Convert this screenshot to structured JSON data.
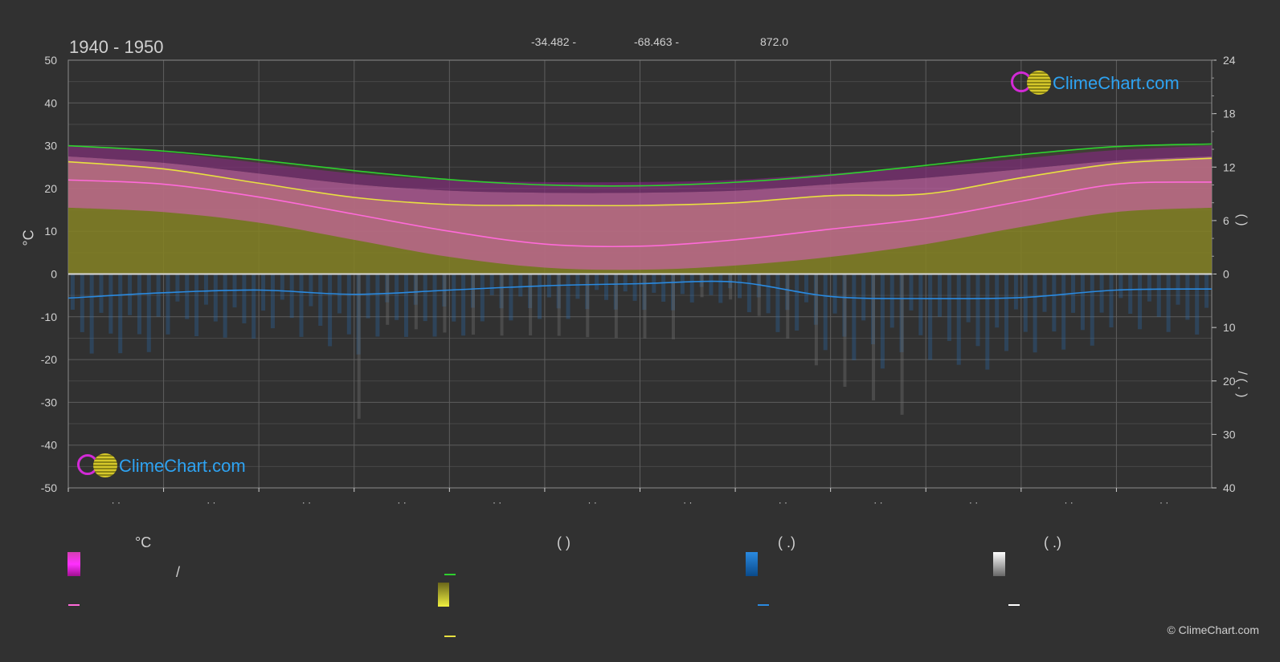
{
  "header": {
    "period": "1940 - 1950",
    "coords": [
      "-34.482 -",
      "-68.463 -",
      "872.0"
    ]
  },
  "axes": {
    "left_label": "°C",
    "left_ticks": [
      50,
      40,
      30,
      20,
      10,
      0,
      -10,
      -20,
      -30,
      -40,
      -50
    ],
    "right_top_ticks": [
      24,
      18,
      12,
      6,
      0
    ],
    "right_bottom_ticks": [
      10,
      20,
      30,
      40
    ],
    "right_top_title": "(     )",
    "right_bottom_title": "/ (  .  )",
    "month_ticks": [
      "· ·",
      "· ·",
      "· ·",
      "· ·",
      "· ·",
      "· ·",
      "· ·",
      "· ·",
      "· ·",
      "· ·",
      "· ·",
      "· ·"
    ]
  },
  "legend": {
    "col1_title": "°C",
    "col1_range_sep": "/",
    "col2_title": "(          )",
    "col3_title": "(   .)",
    "col4_title": "(   .)"
  },
  "logo_text": "ClimeChart.com",
  "copyright": "© ClimeChart.com",
  "colors": {
    "background": "#313131",
    "grid": "#5a5a5a",
    "daylight": "#2ed12e",
    "sunshine": "#e8e040",
    "temp_mean": "#ff6ad9",
    "temp_band": "#d43fb2",
    "rain": "#2a8ae0",
    "snow": "#8a8a8a"
  },
  "chart_data": {
    "type": "area",
    "x_unit": "month",
    "x_months": 12,
    "ylim_left": [
      -50,
      50
    ],
    "ylim_right_top": [
      0,
      24
    ],
    "ylim_right_bottom": [
      0,
      40
    ],
    "series": [
      {
        "key": "daylight_hours",
        "values": [
          14.4,
          13.8,
          12.8,
          11.6,
          10.6,
          10.0,
          9.9,
          10.3,
          11.1,
          12.2,
          13.4,
          14.3,
          14.6
        ]
      },
      {
        "key": "sunshine_hours",
        "values": [
          12.6,
          11.8,
          10.2,
          8.6,
          7.8,
          7.7,
          7.7,
          8.0,
          8.8,
          9.0,
          10.8,
          12.4,
          13.0
        ]
      },
      {
        "key": "temp_max_mean",
        "values": [
          27.5,
          26.0,
          23.5,
          21.0,
          19.5,
          19.0,
          19.0,
          19.5,
          21.0,
          22.5,
          24.5,
          26.5,
          27.5
        ]
      },
      {
        "key": "temp_mean",
        "values": [
          22.0,
          21.0,
          18.0,
          14.0,
          10.0,
          7.0,
          6.5,
          8.0,
          10.5,
          13.0,
          17.0,
          21.0,
          21.5
        ]
      },
      {
        "key": "temp_min_mean",
        "values": [
          15.5,
          14.5,
          12.0,
          8.0,
          4.0,
          1.5,
          1.0,
          2.0,
          4.0,
          7.0,
          11.0,
          14.5,
          15.5
        ]
      },
      {
        "key": "rain_mean_mm",
        "values": [
          4.5,
          3.5,
          3.0,
          3.8,
          3.0,
          2.2,
          1.8,
          1.5,
          4.2,
          4.6,
          4.4,
          3.0,
          2.8
        ]
      }
    ]
  }
}
